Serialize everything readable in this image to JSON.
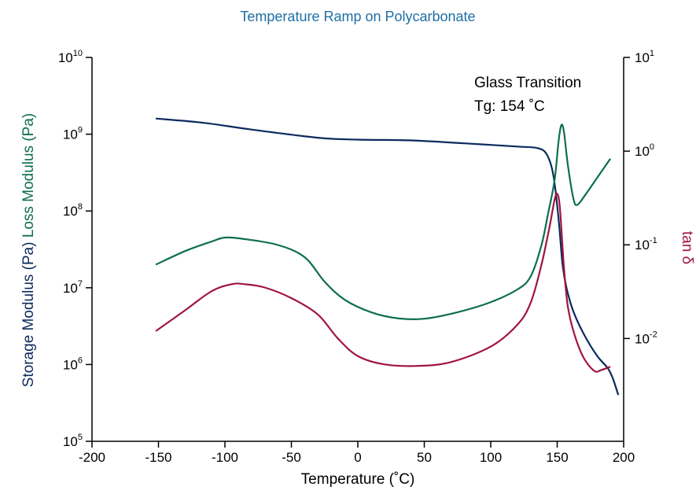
{
  "chart_data": {
    "type": "line",
    "title": "Temperature Ramp on Polycarbonate",
    "title_color": "#1f6fa3",
    "xlabel": "Temperature (˚C)",
    "xlim": [
      -200,
      200
    ],
    "x_ticks": [
      -200,
      -150,
      -100,
      -50,
      0,
      50,
      100,
      150,
      200
    ],
    "y_left": {
      "scale": "log",
      "lim": [
        100000,
        10000000000
      ],
      "tick_exponents": [
        5,
        6,
        7,
        8,
        9,
        10
      ],
      "label_storage": "Storage Modulus (Pa)",
      "label_loss": "Loss Modulus (Pa)",
      "label_storage_color": "#0c2a5e",
      "label_loss_color": "#0d6e4f"
    },
    "y_right": {
      "scale": "log",
      "lim": [
        0.0008,
        10
      ],
      "tick_exponents": [
        -2,
        -1,
        0,
        1
      ],
      "label": "tan δ",
      "label_color": "#a0153e"
    },
    "annotation": {
      "line1": "Glass Transition",
      "line2": "Tg: 154 ˚C"
    },
    "series": [
      {
        "key": "storage",
        "axis": "left",
        "color": "#0c2a5e",
        "points": [
          [
            -152,
            1600000000
          ],
          [
            -115,
            1400000000
          ],
          [
            -80,
            1150000000
          ],
          [
            -30,
            900000000
          ],
          [
            0,
            850000000
          ],
          [
            40,
            830000000
          ],
          [
            80,
            760000000
          ],
          [
            120,
            690000000
          ],
          [
            135,
            660000000
          ],
          [
            142,
            550000000
          ],
          [
            147,
            300000000
          ],
          [
            151,
            80000000
          ],
          [
            154,
            20000000
          ],
          [
            157,
            10000000
          ],
          [
            162,
            5000000
          ],
          [
            170,
            2500000
          ],
          [
            180,
            1300000
          ],
          [
            188,
            900000
          ],
          [
            192,
            650000
          ],
          [
            196,
            400000
          ]
        ]
      },
      {
        "key": "loss",
        "axis": "left",
        "color": "#0d6e4f",
        "points": [
          [
            -152,
            20000000
          ],
          [
            -130,
            30000000
          ],
          [
            -110,
            40000000
          ],
          [
            -100,
            45000000
          ],
          [
            -85,
            43000000
          ],
          [
            -60,
            36000000
          ],
          [
            -40,
            25000000
          ],
          [
            -25,
            12000000
          ],
          [
            -10,
            7000000
          ],
          [
            10,
            4800000
          ],
          [
            30,
            4000000
          ],
          [
            50,
            3950000
          ],
          [
            75,
            4800000
          ],
          [
            100,
            6500000
          ],
          [
            120,
            9500000
          ],
          [
            130,
            14000000
          ],
          [
            138,
            35000000
          ],
          [
            143,
            90000000
          ],
          [
            148,
            250000000
          ],
          [
            151,
            800000000
          ],
          [
            153,
            1300000000
          ],
          [
            155,
            1100000000
          ],
          [
            158,
            400000000
          ],
          [
            162,
            150000000
          ],
          [
            165,
            120000000
          ],
          [
            172,
            170000000
          ],
          [
            180,
            270000000
          ],
          [
            190,
            480000000
          ]
        ]
      },
      {
        "key": "tan_delta",
        "axis": "right",
        "color": "#a0153e",
        "points": [
          [
            -152,
            0.012
          ],
          [
            -130,
            0.02
          ],
          [
            -110,
            0.032
          ],
          [
            -95,
            0.038
          ],
          [
            -85,
            0.038
          ],
          [
            -70,
            0.035
          ],
          [
            -50,
            0.027
          ],
          [
            -30,
            0.018
          ],
          [
            -15,
            0.01
          ],
          [
            0,
            0.0065
          ],
          [
            20,
            0.0053
          ],
          [
            45,
            0.0051
          ],
          [
            70,
            0.0056
          ],
          [
            100,
            0.0082
          ],
          [
            120,
            0.014
          ],
          [
            130,
            0.024
          ],
          [
            138,
            0.06
          ],
          [
            144,
            0.15
          ],
          [
            148,
            0.3
          ],
          [
            150,
            0.35
          ],
          [
            152,
            0.25
          ],
          [
            155,
            0.06
          ],
          [
            158,
            0.022
          ],
          [
            163,
            0.011
          ],
          [
            170,
            0.0062
          ],
          [
            178,
            0.0045
          ],
          [
            183,
            0.0046
          ],
          [
            190,
            0.005
          ]
        ]
      }
    ]
  }
}
